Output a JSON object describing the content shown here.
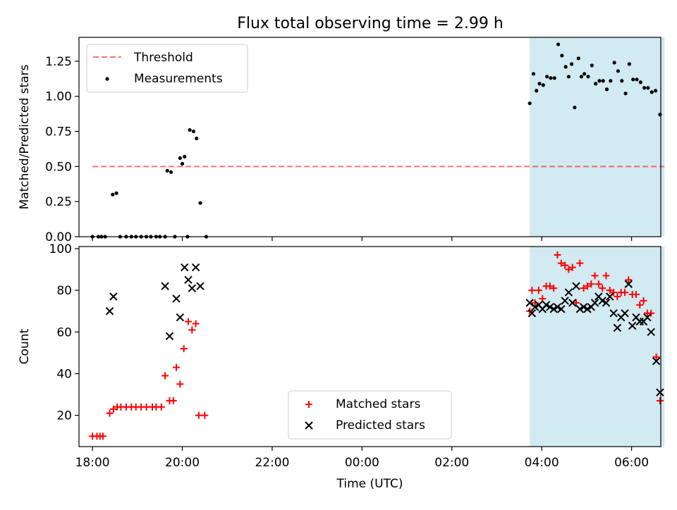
{
  "title": "Flux total observing time = 2.99 h",
  "colors": {
    "highlight": "#add8e6",
    "threshold": "#ff0000",
    "measurement": "#000000",
    "matched": "#ff0000",
    "predicted": "#000000"
  },
  "chart_data": [
    {
      "type": "scatter",
      "panel": "top",
      "ylabel": "Matched/Predicted stars",
      "ylim": [
        0,
        1.42
      ],
      "yticks": [
        0,
        0.25,
        0.5,
        0.75,
        1.0,
        1.25
      ],
      "ytick_labels": [
        "0.00",
        "0.25",
        "0.50",
        "0.75",
        "1.00",
        "1.25"
      ],
      "xlim_hours": [
        17.7,
        24.0,
        30.65
      ],
      "highlight_span": [
        "03:44",
        "06:44"
      ],
      "legend": {
        "placement": "upper left",
        "entries": [
          "Threshold",
          "Measurements"
        ]
      },
      "threshold": {
        "name": "Threshold",
        "y": 0.5,
        "x": [
          "18:00",
          "06:44"
        ],
        "style": "dashed"
      },
      "series": [
        {
          "name": "Measurements",
          "marker": "dot",
          "points": [
            [
              "18:00",
              0.0
            ],
            [
              "18:08",
              0.0
            ],
            [
              "18:12",
              0.0
            ],
            [
              "18:17",
              0.0
            ],
            [
              "18:27",
              0.3
            ],
            [
              "18:32",
              0.31
            ],
            [
              "18:37",
              0.0
            ],
            [
              "18:45",
              0.0
            ],
            [
              "18:52",
              0.0
            ],
            [
              "18:58",
              0.0
            ],
            [
              "19:05",
              0.0
            ],
            [
              "19:12",
              0.0
            ],
            [
              "19:18",
              0.0
            ],
            [
              "19:25",
              0.0
            ],
            [
              "19:30",
              0.0
            ],
            [
              "19:37",
              0.0
            ],
            [
              "19:40",
              0.47
            ],
            [
              "19:45",
              0.46
            ],
            [
              "19:50",
              0.0
            ],
            [
              "19:57",
              0.56
            ],
            [
              "20:00",
              0.52
            ],
            [
              "20:03",
              0.57
            ],
            [
              "20:07",
              0.0
            ],
            [
              "20:10",
              0.76
            ],
            [
              "20:15",
              0.75
            ],
            [
              "20:19",
              0.7
            ],
            [
              "20:24",
              0.24
            ],
            [
              "20:32",
              0.0
            ],
            [
              "03:44",
              0.95
            ],
            [
              "03:49",
              1.16
            ],
            [
              "03:53",
              1.04
            ],
            [
              "03:57",
              1.09
            ],
            [
              "04:02",
              1.08
            ],
            [
              "04:07",
              1.14
            ],
            [
              "04:12",
              1.13
            ],
            [
              "04:17",
              1.13
            ],
            [
              "04:22",
              1.37
            ],
            [
              "04:27",
              1.29
            ],
            [
              "04:32",
              1.21
            ],
            [
              "04:36",
              1.14
            ],
            [
              "04:40",
              1.23
            ],
            [
              "04:44",
              0.92
            ],
            [
              "04:49",
              1.27
            ],
            [
              "04:53",
              1.14
            ],
            [
              "04:57",
              1.16
            ],
            [
              "05:02",
              1.14
            ],
            [
              "05:07",
              1.22
            ],
            [
              "05:12",
              1.09
            ],
            [
              "05:17",
              1.11
            ],
            [
              "05:22",
              1.11
            ],
            [
              "05:27",
              1.05
            ],
            [
              "05:32",
              1.11
            ],
            [
              "05:37",
              1.24
            ],
            [
              "05:42",
              1.18
            ],
            [
              "05:47",
              1.11
            ],
            [
              "05:52",
              1.02
            ],
            [
              "05:57",
              1.23
            ],
            [
              "06:02",
              1.12
            ],
            [
              "06:07",
              1.12
            ],
            [
              "06:12",
              1.1
            ],
            [
              "06:17",
              1.06
            ],
            [
              "06:22",
              1.06
            ],
            [
              "06:27",
              1.03
            ],
            [
              "06:32",
              1.04
            ],
            [
              "06:38",
              0.87
            ]
          ]
        }
      ]
    },
    {
      "type": "scatter",
      "panel": "bottom",
      "xlabel": "Time (UTC)",
      "ylabel": "Count",
      "ylim": [
        5,
        101
      ],
      "yticks": [
        20,
        40,
        60,
        80,
        100
      ],
      "ytick_labels": [
        "20",
        "40",
        "60",
        "80",
        "100"
      ],
      "xlim_hours": [
        17.7,
        24.0,
        30.65
      ],
      "xticks": [
        "18:00",
        "20:00",
        "22:00",
        "00:00",
        "02:00",
        "04:00",
        "06:00"
      ],
      "highlight_span": [
        "03:44",
        "06:44"
      ],
      "legend": {
        "placement": "lower center",
        "entries": [
          "Matched stars",
          "Predicted stars"
        ]
      },
      "series": [
        {
          "name": "Matched stars",
          "marker": "plus",
          "points": [
            [
              "18:00",
              10
            ],
            [
              "18:06",
              10
            ],
            [
              "18:10",
              10
            ],
            [
              "18:14",
              10
            ],
            [
              "18:23",
              21
            ],
            [
              "18:28",
              23
            ],
            [
              "18:33",
              24
            ],
            [
              "18:38",
              24
            ],
            [
              "18:45",
              24
            ],
            [
              "18:52",
              24
            ],
            [
              "18:58",
              24
            ],
            [
              "19:05",
              24
            ],
            [
              "19:12",
              24
            ],
            [
              "19:20",
              24
            ],
            [
              "19:25",
              24
            ],
            [
              "19:32",
              24
            ],
            [
              "19:37",
              39
            ],
            [
              "19:43",
              27
            ],
            [
              "19:48",
              27
            ],
            [
              "19:52",
              43
            ],
            [
              "19:57",
              35
            ],
            [
              "20:02",
              52
            ],
            [
              "20:08",
              65
            ],
            [
              "20:13",
              61
            ],
            [
              "20:18",
              64
            ],
            [
              "20:22",
              20
            ],
            [
              "20:30",
              20
            ],
            [
              "03:44",
              70
            ],
            [
              "03:47",
              80
            ],
            [
              "03:51",
              74
            ],
            [
              "03:56",
              80
            ],
            [
              "04:01",
              76
            ],
            [
              "04:06",
              82
            ],
            [
              "04:11",
              82
            ],
            [
              "04:16",
              81
            ],
            [
              "04:21",
              97
            ],
            [
              "04:26",
              93
            ],
            [
              "04:31",
              92
            ],
            [
              "04:36",
              90
            ],
            [
              "04:41",
              91
            ],
            [
              "04:46",
              74
            ],
            [
              "04:51",
              93
            ],
            [
              "04:56",
              81
            ],
            [
              "05:01",
              82
            ],
            [
              "05:06",
              83
            ],
            [
              "05:11",
              87
            ],
            [
              "05:16",
              83
            ],
            [
              "05:21",
              81
            ],
            [
              "05:26",
              87
            ],
            [
              "05:31",
              80
            ],
            [
              "05:36",
              79
            ],
            [
              "05:41",
              77
            ],
            [
              "05:46",
              79
            ],
            [
              "05:51",
              79
            ],
            [
              "05:56",
              85
            ],
            [
              "06:01",
              78
            ],
            [
              "06:06",
              78
            ],
            [
              "06:11",
              73
            ],
            [
              "06:16",
              75
            ],
            [
              "06:21",
              69
            ],
            [
              "06:26",
              69
            ],
            [
              "06:33",
              48
            ],
            [
              "06:38",
              27
            ]
          ]
        },
        {
          "name": "Predicted stars",
          "marker": "x",
          "points": [
            [
              "18:23",
              70
            ],
            [
              "18:28",
              77
            ],
            [
              "19:37",
              82
            ],
            [
              "19:43",
              58
            ],
            [
              "19:52",
              76
            ],
            [
              "19:57",
              67
            ],
            [
              "20:03",
              91
            ],
            [
              "20:08",
              85
            ],
            [
              "20:13",
              81
            ],
            [
              "20:18",
              91
            ],
            [
              "20:24",
              82
            ],
            [
              "03:44",
              74
            ],
            [
              "03:47",
              69
            ],
            [
              "03:51",
              72
            ],
            [
              "03:56",
              73
            ],
            [
              "04:01",
              71
            ],
            [
              "04:06",
              73
            ],
            [
              "04:11",
              72
            ],
            [
              "04:16",
              71
            ],
            [
              "04:21",
              72
            ],
            [
              "04:26",
              71
            ],
            [
              "04:31",
              75
            ],
            [
              "04:36",
              79
            ],
            [
              "04:41",
              74
            ],
            [
              "04:46",
              82
            ],
            [
              "04:51",
              71
            ],
            [
              "04:56",
              72
            ],
            [
              "05:01",
              71
            ],
            [
              "05:06",
              72
            ],
            [
              "05:11",
              74
            ],
            [
              "05:16",
              77
            ],
            [
              "05:21",
              75
            ],
            [
              "05:26",
              74
            ],
            [
              "05:31",
              77
            ],
            [
              "05:36",
              69
            ],
            [
              "05:41",
              62
            ],
            [
              "05:46",
              67
            ],
            [
              "05:51",
              69
            ],
            [
              "05:56",
              83
            ],
            [
              "06:01",
              63
            ],
            [
              "06:06",
              67
            ],
            [
              "06:11",
              65
            ],
            [
              "06:16",
              65
            ],
            [
              "06:21",
              67
            ],
            [
              "06:26",
              60
            ],
            [
              "06:33",
              46
            ],
            [
              "06:38",
              31
            ]
          ]
        }
      ]
    }
  ]
}
